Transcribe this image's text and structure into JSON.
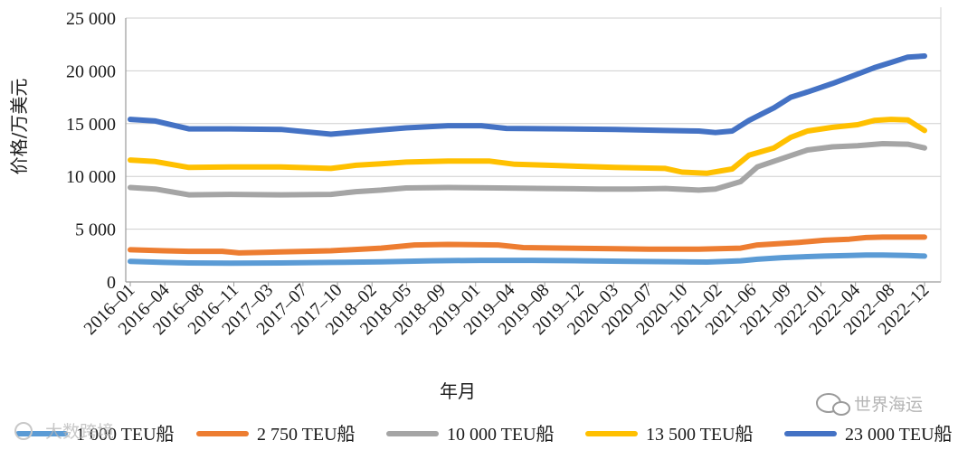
{
  "chart_data": {
    "type": "line",
    "title": "",
    "xlabel": "年月",
    "ylabel": "价格/万美元",
    "ylim": [
      0,
      25000
    ],
    "yticks": [
      0,
      5000,
      10000,
      15000,
      20000,
      25000
    ],
    "ytick_labels": [
      "0",
      "5 000",
      "10 000",
      "15 000",
      "20 000",
      "25 000"
    ],
    "grid": "horizontal",
    "legend_position": "bottom",
    "x_categories": [
      "2016–01",
      "2016–04",
      "2016–08",
      "2016–11",
      "2017–03",
      "2017–07",
      "2017–10",
      "2018–02",
      "2018–05",
      "2018–09",
      "2019–01",
      "2019–04",
      "2019–08",
      "2019–12",
      "2020–03",
      "2020–07",
      "2020–10",
      "2021–02",
      "2021–06",
      "2021–09",
      "2022–01",
      "2022–04",
      "2022–08",
      "2022–12"
    ],
    "x_range_months": [
      0,
      83
    ],
    "series": [
      {
        "name": "1 000 TEU船",
        "color": "#5b9bd5",
        "points": [
          [
            0,
            1950
          ],
          [
            4,
            1850
          ],
          [
            7,
            1800
          ],
          [
            12,
            1780
          ],
          [
            18,
            1800
          ],
          [
            24,
            1850
          ],
          [
            30,
            1900
          ],
          [
            36,
            2000
          ],
          [
            42,
            2050
          ],
          [
            48,
            2050
          ],
          [
            54,
            2000
          ],
          [
            60,
            1950
          ],
          [
            66,
            1900
          ],
          [
            69,
            1880
          ],
          [
            73,
            2000
          ],
          [
            75,
            2150
          ],
          [
            78,
            2300
          ],
          [
            81,
            2400
          ],
          [
            83,
            2450
          ],
          [
            86,
            2500
          ],
          [
            88,
            2550
          ],
          [
            90,
            2550
          ],
          [
            93,
            2500
          ],
          [
            95,
            2450
          ]
        ]
      },
      {
        "name": "2 750 TEU船",
        "color": "#ed7d31",
        "points": [
          [
            0,
            3050
          ],
          [
            4,
            2950
          ],
          [
            7,
            2900
          ],
          [
            11,
            2900
          ],
          [
            13,
            2750
          ],
          [
            16,
            2800
          ],
          [
            18,
            2850
          ],
          [
            24,
            2950
          ],
          [
            30,
            3200
          ],
          [
            34,
            3500
          ],
          [
            38,
            3550
          ],
          [
            44,
            3500
          ],
          [
            47,
            3250
          ],
          [
            52,
            3200
          ],
          [
            58,
            3150
          ],
          [
            62,
            3100
          ],
          [
            68,
            3100
          ],
          [
            73,
            3200
          ],
          [
            75,
            3500
          ],
          [
            80,
            3750
          ],
          [
            83,
            3950
          ],
          [
            86,
            4050
          ],
          [
            88,
            4200
          ],
          [
            90,
            4250
          ],
          [
            93,
            4250
          ],
          [
            95,
            4250
          ]
        ]
      },
      {
        "name": "10 000 TEU船",
        "color": "#a5a5a5",
        "points": [
          [
            0,
            8950
          ],
          [
            3,
            8800
          ],
          [
            7,
            8250
          ],
          [
            12,
            8300
          ],
          [
            18,
            8250
          ],
          [
            24,
            8300
          ],
          [
            27,
            8550
          ],
          [
            30,
            8700
          ],
          [
            33,
            8900
          ],
          [
            38,
            8950
          ],
          [
            44,
            8900
          ],
          [
            50,
            8850
          ],
          [
            56,
            8800
          ],
          [
            60,
            8800
          ],
          [
            64,
            8850
          ],
          [
            68,
            8700
          ],
          [
            70,
            8800
          ],
          [
            73,
            9500
          ],
          [
            75,
            10900
          ],
          [
            78,
            11700
          ],
          [
            81,
            12500
          ],
          [
            84,
            12800
          ],
          [
            87,
            12900
          ],
          [
            90,
            13100
          ],
          [
            93,
            13050
          ],
          [
            95,
            12700
          ]
        ]
      },
      {
        "name": "13 500 TEU船",
        "color": "#ffc000",
        "points": [
          [
            0,
            11550
          ],
          [
            3,
            11400
          ],
          [
            7,
            10850
          ],
          [
            12,
            10900
          ],
          [
            18,
            10900
          ],
          [
            24,
            10750
          ],
          [
            27,
            11050
          ],
          [
            30,
            11200
          ],
          [
            33,
            11350
          ],
          [
            38,
            11450
          ],
          [
            43,
            11450
          ],
          [
            46,
            11150
          ],
          [
            50,
            11050
          ],
          [
            54,
            10950
          ],
          [
            58,
            10850
          ],
          [
            64,
            10750
          ],
          [
            66,
            10400
          ],
          [
            69,
            10300
          ],
          [
            72,
            10700
          ],
          [
            74,
            12000
          ],
          [
            77,
            12700
          ],
          [
            79,
            13700
          ],
          [
            81,
            14300
          ],
          [
            84,
            14650
          ],
          [
            87,
            14900
          ],
          [
            89,
            15300
          ],
          [
            91,
            15400
          ],
          [
            93,
            15350
          ],
          [
            95,
            14350
          ]
        ]
      },
      {
        "name": "23 000 TEU船",
        "color": "#4472c4",
        "points": [
          [
            0,
            15400
          ],
          [
            3,
            15250
          ],
          [
            7,
            14500
          ],
          [
            12,
            14500
          ],
          [
            18,
            14450
          ],
          [
            24,
            14000
          ],
          [
            27,
            14200
          ],
          [
            30,
            14400
          ],
          [
            33,
            14600
          ],
          [
            38,
            14800
          ],
          [
            42,
            14800
          ],
          [
            45,
            14550
          ],
          [
            52,
            14500
          ],
          [
            58,
            14450
          ],
          [
            64,
            14350
          ],
          [
            68,
            14300
          ],
          [
            70,
            14150
          ],
          [
            72,
            14300
          ],
          [
            74,
            15300
          ],
          [
            77,
            16500
          ],
          [
            79,
            17500
          ],
          [
            81,
            18000
          ],
          [
            84,
            18800
          ],
          [
            87,
            19700
          ],
          [
            89,
            20300
          ],
          [
            91,
            20800
          ],
          [
            93,
            21300
          ],
          [
            95,
            21400
          ]
        ]
      }
    ]
  },
  "watermarks": {
    "bottom_left": "大数跨境",
    "bottom_right": "世界海运"
  }
}
